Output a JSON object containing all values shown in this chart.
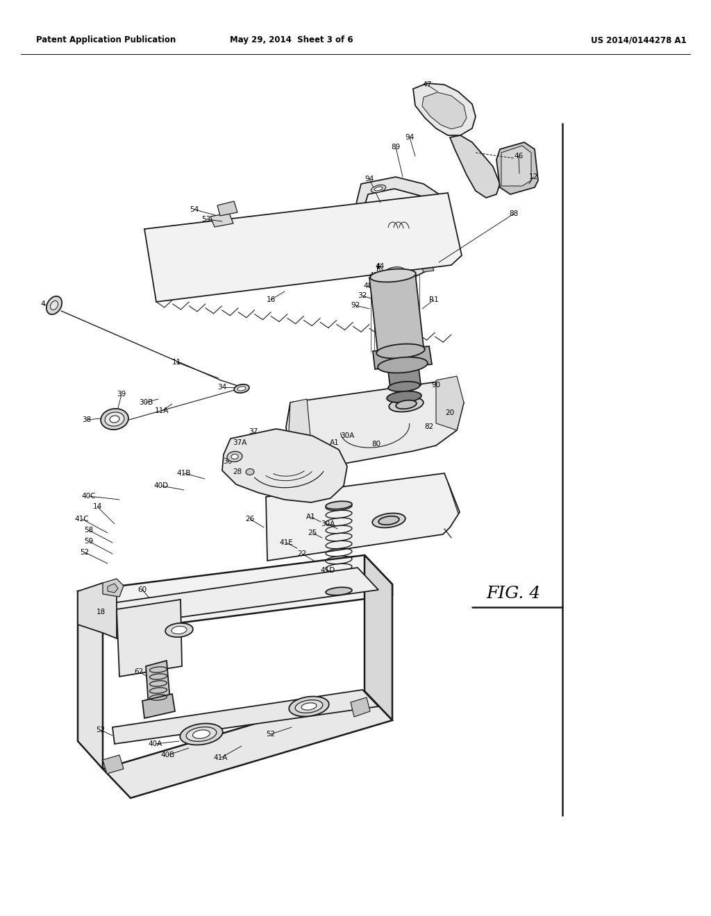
{
  "background_color": "#ffffff",
  "fig_width": 10.24,
  "fig_height": 13.2,
  "header_left": "Patent Application Publication",
  "header_mid": "May 29, 2014  Sheet 3 of 6",
  "header_right": "US 2014/0144278 A1",
  "fig_label": "FIG. 4",
  "header_fontsize": 8.5,
  "fig_label_fontsize": 18,
  "line_color": "#1a1a1a",
  "lw_main": 1.3,
  "lw_thin": 0.8,
  "lw_thick": 1.8
}
